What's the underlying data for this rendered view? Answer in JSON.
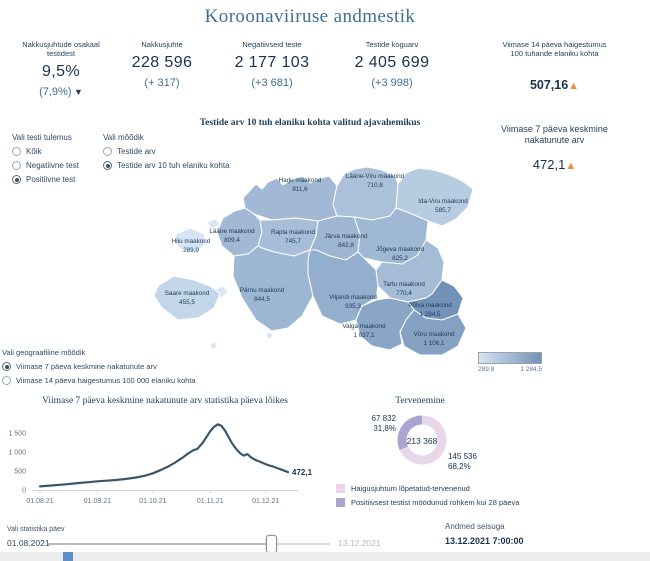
{
  "title": "Koroonaviiruse andmestik",
  "colors": {
    "navy": "#1b3a57",
    "steel_blue": "#3f6e94",
    "orange": "#ef8e3b",
    "map_min_color": "#d4e4f3",
    "map_max_color": "#7292b8",
    "line_color": "#3a566e",
    "donut_recovered": "#e8d6e9",
    "donut_over28": "#aba4d0"
  },
  "stats": [
    {
      "label_lines": [
        "Nakkusjuhtude osakaal",
        "testidest"
      ],
      "value": "9,5%",
      "delta": "(7,9%)",
      "trend": "down",
      "value_small": false
    },
    {
      "label_lines": [
        "Nakkusjuhte"
      ],
      "value": "228 596",
      "delta": "(+ 317)",
      "trend": "",
      "value_small": false
    },
    {
      "label_lines": [
        "Negatiivseid teste"
      ],
      "value": "2 177 103",
      "delta": "(+3 681)",
      "trend": "",
      "value_small": false
    },
    {
      "label_lines": [
        "Testide koguarv"
      ],
      "value": "2 405 699",
      "delta": "(+3 998)",
      "trend": "",
      "value_small": false
    },
    {
      "label_lines": [
        "Viimase 14 päeva haigestumus",
        "100 tuhande elaniku kohta"
      ],
      "value": "507,16",
      "delta": "",
      "trend": "up",
      "value_small": true
    }
  ],
  "side_panel": {
    "label_lines": [
      "Viimase 7 päeva keskmine",
      "nakatunute arv"
    ],
    "value": "472,1",
    "trend": "up"
  },
  "filters": {
    "test_result": {
      "label": "Vali testi tulemus",
      "options": [
        {
          "label": "Kõik",
          "selected": false
        },
        {
          "label": "Negatiivne test",
          "selected": false
        },
        {
          "label": "Positiivne test",
          "selected": true
        }
      ]
    },
    "metric": {
      "label": "Vali mõõdik",
      "options": [
        {
          "label": "Testide arv",
          "selected": false
        },
        {
          "label": "Testide arv 10 tuh elaniku kohta",
          "selected": true
        }
      ]
    },
    "geo_metric": {
      "label": "Vali geograafiline mõõdik",
      "options": [
        {
          "label": "Viimase 7 päeva keskmine nakatunute arv",
          "selected": true
        },
        {
          "label": "Viimase 14 päeva haigestumus 100 000 elaniku kohta",
          "selected": false
        }
      ]
    }
  },
  "map_section": {
    "title": "Testide arv 10 tuh elaniku kohta valitud ajavahemikus",
    "legend": {
      "min": "289,9",
      "max": "1 284,5"
    },
    "counties": [
      {
        "id": "harju",
        "name": "Harju maakond",
        "value": "811,6"
      },
      {
        "id": "laane_viru",
        "name": "Lääne-Viru maakond",
        "value": "710,8"
      },
      {
        "id": "ida_viru",
        "name": "Ida-Viru maakond",
        "value": "585,7"
      },
      {
        "id": "hiiu",
        "name": "Hiiu maakond",
        "value": "289,9"
      },
      {
        "id": "laane",
        "name": "Lääne maakond",
        "value": "809,4"
      },
      {
        "id": "rapla",
        "name": "Rapla maakond",
        "value": "745,7"
      },
      {
        "id": "jarva",
        "name": "Järva maakond",
        "value": "842,8"
      },
      {
        "id": "jogeva",
        "name": "Jõgeva maakond",
        "value": "825,2"
      },
      {
        "id": "saare",
        "name": "Saare maakond",
        "value": "455,5"
      },
      {
        "id": "parnu",
        "name": "Pärnu maakond",
        "value": "844,5"
      },
      {
        "id": "viljandi",
        "name": "Viljandi maakond",
        "value": "935,3"
      },
      {
        "id": "tartu",
        "name": "Tartu maakond",
        "value": "770,4"
      },
      {
        "id": "polva",
        "name": "Põlva maakond",
        "value": "1 284,5"
      },
      {
        "id": "valga",
        "name": "Valga maakond",
        "value": "1 037,1"
      },
      {
        "id": "voru",
        "name": "Võru maakond",
        "value": "1 106,1"
      }
    ]
  },
  "recovery": {
    "title": "Tervenemine",
    "center": "213 368",
    "slices": [
      {
        "label": "Haigusjuhtum lõpetatud-tervenenud",
        "value": "145 536",
        "percent": "68,2%",
        "percent_num": 68.2,
        "color": "#e8d6e9"
      },
      {
        "label": "Positiivsest testist möödunud rohkem kui 28 päeva",
        "value": "67 832",
        "percent": "31,8%",
        "percent_num": 31.8,
        "color": "#aba4d0"
      }
    ]
  },
  "slider": {
    "label": "Vali statistika päev",
    "start": "01.08.2021",
    "end": "13.12.2021",
    "position_pct": 79
  },
  "data_as_of": {
    "label": "Andmed seisuga",
    "value": "13.12.2021 7:00:00"
  },
  "chart_data": [
    {
      "type": "line",
      "title": "Viimase 7 päeva keskmine nakatunute arv statistika päeva lõikes",
      "x_unit": "days since 01.08.2021",
      "x_ticks": [
        "01.08.21",
        "01.09.21",
        "01.10.21",
        "01.11.21",
        "01.12.21"
      ],
      "x_tick_days": [
        0,
        31,
        61,
        92,
        122
      ],
      "y_ticks": [
        0,
        500,
        1000,
        1500
      ],
      "y_tick_labels": [
        "0",
        "500",
        "1 000",
        "1 500"
      ],
      "ylim": [
        0,
        1800
      ],
      "end_label": "472,1",
      "points": [
        [
          0,
          95
        ],
        [
          7,
          120
        ],
        [
          14,
          150
        ],
        [
          21,
          185
        ],
        [
          26,
          205
        ],
        [
          31,
          230
        ],
        [
          36,
          245
        ],
        [
          41,
          262
        ],
        [
          46,
          290
        ],
        [
          52,
          330
        ],
        [
          57,
          380
        ],
        [
          61,
          440
        ],
        [
          65,
          520
        ],
        [
          69,
          610
        ],
        [
          73,
          720
        ],
        [
          77,
          850
        ],
        [
          80,
          960
        ],
        [
          83,
          1050
        ],
        [
          85,
          1080
        ],
        [
          88,
          1250
        ],
        [
          90,
          1400
        ],
        [
          92,
          1550
        ],
        [
          94,
          1660
        ],
        [
          96,
          1730
        ],
        [
          98,
          1690
        ],
        [
          100,
          1560
        ],
        [
          102,
          1380
        ],
        [
          104,
          1210
        ],
        [
          106,
          1080
        ],
        [
          108,
          975
        ],
        [
          110,
          905
        ],
        [
          112,
          945
        ],
        [
          114,
          860
        ],
        [
          116,
          800
        ],
        [
          118,
          760
        ],
        [
          120,
          720
        ],
        [
          122,
          680
        ],
        [
          124,
          645
        ],
        [
          126,
          615
        ],
        [
          128,
          580
        ],
        [
          130,
          545
        ],
        [
          132,
          508
        ],
        [
          134,
          472
        ]
      ]
    },
    {
      "type": "pie",
      "title": "Tervenemine",
      "center_total": 213368,
      "slices": [
        {
          "label": "Haigusjuhtum lõpetatud-tervenenud",
          "value": 145536,
          "percent": 68.2
        },
        {
          "label": "Positiivsest testist möödunud rohkem kui 28 päeva",
          "value": 67832,
          "percent": 31.8
        }
      ],
      "legend_position": "bottom"
    },
    {
      "type": "choropleth",
      "title": "Testide arv 10 tuh elaniku kohta valitud ajavahemikus",
      "range": [
        289.9,
        1284.5
      ],
      "regions": [
        [
          "Harju",
          811.6
        ],
        [
          "Lääne-Viru",
          710.8
        ],
        [
          "Ida-Viru",
          585.7
        ],
        [
          "Hiiu",
          289.9
        ],
        [
          "Lääne",
          809.4
        ],
        [
          "Rapla",
          745.7
        ],
        [
          "Järva",
          842.8
        ],
        [
          "Jõgeva",
          825.2
        ],
        [
          "Saare",
          455.5
        ],
        [
          "Pärnu",
          844.5
        ],
        [
          "Viljandi",
          935.3
        ],
        [
          "Tartu",
          770.4
        ],
        [
          "Põlva",
          1284.5
        ],
        [
          "Valga",
          1037.1
        ],
        [
          "Võru",
          1106.1
        ]
      ]
    }
  ]
}
